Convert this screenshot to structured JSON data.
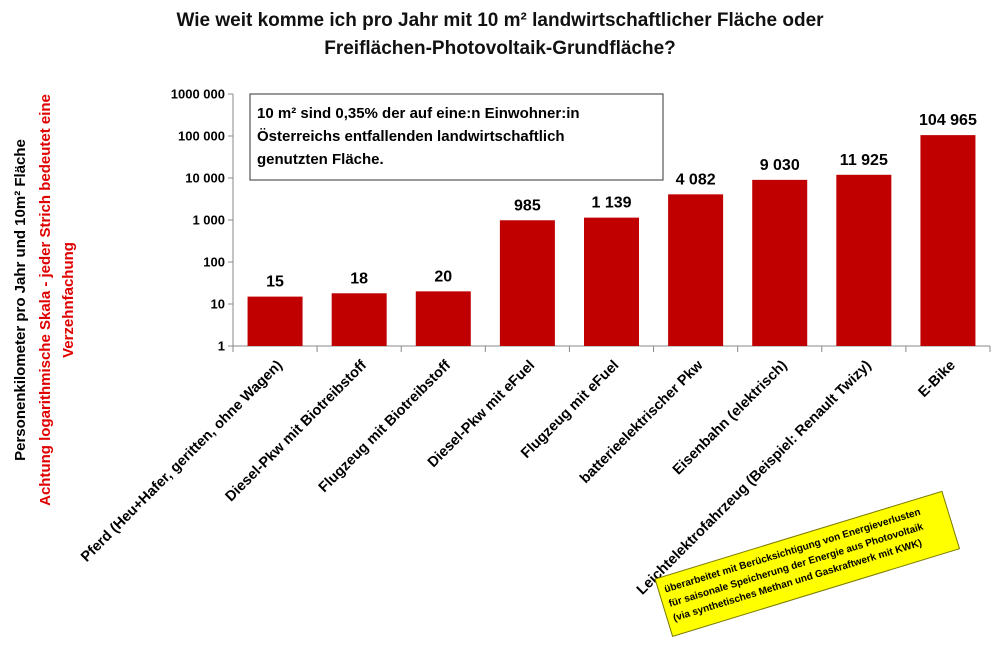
{
  "chart_data": {
    "type": "bar",
    "title_lines": [
      "Wie weit komme ich pro Jahr mit 10 m² landwirtschaftlicher Fläche oder",
      "Freiflächen-Photovoltaik-Grundfläche?"
    ],
    "ylabel_lines": [
      "Personenkilometer pro Jahr und 10m² Fläche",
      "Achtung logarithmische Skala - jeder Strich bedeutet eine",
      "Verzehnfachung"
    ],
    "yscale": "log",
    "ylim": [
      1,
      1000000
    ],
    "yticks": [
      "1",
      "10",
      "100",
      "1 000",
      "10 000",
      "100 000",
      "1000 000"
    ],
    "categories": [
      "Pferd (Heu+Hafer, geritten, ohne Wagen)",
      "Diesel-Pkw mit Biotreibstoff",
      "Flugzeug mit Biotreibstoff",
      "Diesel-Pkw mit eFuel",
      "Flugzeug mit eFuel",
      "batterieelektrischer Pkw",
      "Eisenbahn (elektrisch)",
      "Leichtelektrofahrzeug (Beispiel: Renault Twizy)",
      "E-Bike"
    ],
    "values": [
      15,
      18,
      20,
      985,
      1139,
      4082,
      9030,
      11925,
      104965
    ],
    "data_labels": [
      "15",
      "18",
      "20",
      "985",
      "1 139",
      "4 082",
      "9 030",
      "11 925",
      "104 965"
    ],
    "bar_color": "#c00000",
    "grid": false,
    "annotation_lines": [
      "10 m² sind 0,35% der auf eine:n Einwohner:in",
      "Österreichs entfallenden landwirtschaftlich",
      "genutzten Fläche."
    ],
    "sticky_note_lines": [
      "überarbeitet mit Berücksichtigung von Energieverlusten",
      "für saisonale Speicherung der Energie aus Photovoltaik",
      "(via synthetisches Methan und Gaskraftwerk mit KWK)"
    ],
    "sticky_color": "#ffff00"
  }
}
